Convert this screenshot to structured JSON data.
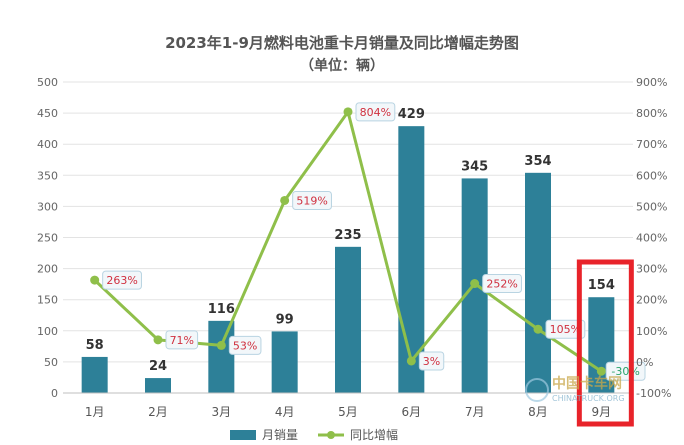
{
  "chart_data": {
    "type": "bar",
    "title": "2023年1-9月燃料电池重卡月销量及同比增幅走势图",
    "subtitle": "（单位：辆）",
    "categories": [
      "1月",
      "2月",
      "3月",
      "4月",
      "5月",
      "6月",
      "7月",
      "8月",
      "9月"
    ],
    "series": [
      {
        "name": "月销量",
        "type": "bar",
        "axis": "left",
        "color": "#2d8098",
        "values": [
          58,
          24,
          116,
          99,
          235,
          429,
          345,
          354,
          154
        ],
        "labels": [
          "58",
          "24",
          "116",
          "99",
          "235",
          "429",
          "345",
          "354",
          "154"
        ]
      },
      {
        "name": "同比增幅",
        "type": "line",
        "axis": "right",
        "color": "#8fbf4a",
        "values": [
          263,
          71,
          53,
          519,
          804,
          3,
          252,
          105,
          -30
        ],
        "labels": [
          "263%",
          "71%",
          "53%",
          "519%",
          "804%",
          "3%",
          "252%",
          "105%",
          "-30%"
        ]
      }
    ],
    "y_left": {
      "min": 0,
      "max": 500,
      "ticks": [
        "0",
        "50",
        "100",
        "150",
        "200",
        "250",
        "300",
        "350",
        "400",
        "450",
        "500"
      ]
    },
    "y_right": {
      "min": -100,
      "max": 900,
      "ticks": [
        "-100%",
        "0%",
        "100%",
        "200%",
        "300%",
        "400%",
        "500%",
        "600%",
        "700%",
        "800%",
        "900%"
      ]
    },
    "grid": true,
    "legend_position": "bottom",
    "label_color": "#d0303f",
    "highlight": {
      "category": "9月",
      "color": "#e8232a"
    },
    "watermark": {
      "text": "中国卡车网",
      "subtext": "CHINATRUCK.ORG"
    }
  }
}
